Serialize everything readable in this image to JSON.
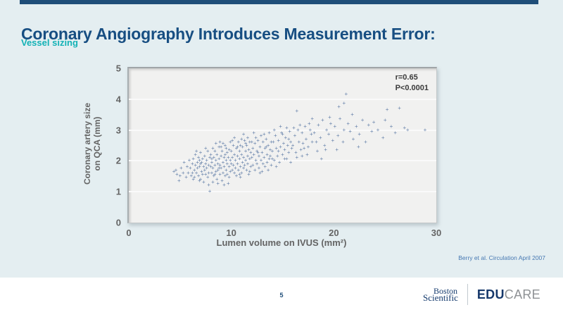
{
  "slide": {
    "title": "Coronary Angiography Introduces Measurement Error:",
    "subtitle": "Vessel sizing"
  },
  "chart_data": {
    "type": "scatter",
    "xlabel": "Lumen volume on IVUS (mm²)",
    "ylabel_line1": "Coronary artery size",
    "ylabel_line2": "on QCA (mm)",
    "xlim": [
      0,
      30
    ],
    "ylim": [
      0,
      5
    ],
    "xticks": [
      0,
      10,
      20,
      30
    ],
    "yticks": [
      0,
      1,
      2,
      3,
      4,
      5
    ],
    "gridlines_y": [
      1,
      2,
      3,
      4
    ],
    "grid": "horizontal",
    "legend": "none",
    "annotation": {
      "line1": "r=0.65",
      "line2": "P<0.0001"
    },
    "marker": "plus",
    "marker_color": "#4d6e9e",
    "points": [
      [
        4.4,
        1.65
      ],
      [
        4.7,
        1.55
      ],
      [
        4.9,
        1.35
      ],
      [
        5.1,
        1.75
      ],
      [
        5.3,
        1.6
      ],
      [
        5.4,
        1.95
      ],
      [
        5.6,
        1.45
      ],
      [
        5.7,
        1.8
      ],
      [
        5.8,
        1.6
      ],
      [
        5.9,
        2.0
      ],
      [
        5.0,
        1.5
      ],
      [
        4.6,
        1.7
      ],
      [
        6.0,
        1.75
      ],
      [
        6.1,
        1.5
      ],
      [
        6.2,
        1.9
      ],
      [
        6.2,
        1.6
      ],
      [
        6.3,
        2.05
      ],
      [
        6.4,
        1.7
      ],
      [
        6.4,
        1.45
      ],
      [
        6.5,
        1.85
      ],
      [
        6.5,
        2.2
      ],
      [
        6.6,
        1.6
      ],
      [
        6.7,
        1.95
      ],
      [
        6.7,
        1.75
      ],
      [
        6.8,
        1.5
      ],
      [
        6.8,
        2.1
      ],
      [
        6.9,
        1.8
      ],
      [
        6.9,
        1.35
      ],
      [
        7.0,
        1.9
      ],
      [
        7.0,
        2.25
      ],
      [
        7.1,
        1.65
      ],
      [
        7.1,
        1.95
      ],
      [
        7.2,
        1.55
      ],
      [
        7.2,
        2.05
      ],
      [
        7.3,
        1.8
      ],
      [
        7.3,
        1.3
      ],
      [
        7.4,
        2.15
      ],
      [
        7.4,
        1.7
      ],
      [
        7.5,
        1.9
      ],
      [
        7.5,
        1.55
      ],
      [
        7.6,
        2.0
      ],
      [
        7.6,
        1.75
      ],
      [
        7.7,
        1.45
      ],
      [
        7.7,
        2.3
      ],
      [
        7.8,
        1.85
      ],
      [
        7.8,
        1.6
      ],
      [
        7.9,
        2.1
      ],
      [
        7.9,
        1.0
      ],
      [
        6.3,
        1.4
      ],
      [
        6.6,
        2.3
      ],
      [
        7.0,
        1.4
      ],
      [
        7.5,
        2.4
      ],
      [
        7.8,
        1.2
      ],
      [
        6.9,
        2.0
      ],
      [
        8.0,
        1.8
      ],
      [
        8.0,
        2.2
      ],
      [
        8.1,
        1.6
      ],
      [
        8.1,
        1.95
      ],
      [
        8.2,
        2.4
      ],
      [
        8.2,
        1.75
      ],
      [
        8.3,
        1.5
      ],
      [
        8.3,
        2.1
      ],
      [
        8.4,
        1.85
      ],
      [
        8.4,
        2.3
      ],
      [
        8.5,
        1.65
      ],
      [
        8.5,
        2.0
      ],
      [
        8.6,
        1.4
      ],
      [
        8.6,
        2.2
      ],
      [
        8.7,
        1.9
      ],
      [
        8.7,
        1.7
      ],
      [
        8.8,
        2.45
      ],
      [
        8.8,
        2.05
      ],
      [
        8.9,
        1.55
      ],
      [
        8.9,
        1.85
      ],
      [
        9.0,
        2.15
      ],
      [
        9.0,
        1.75
      ],
      [
        9.1,
        1.35
      ],
      [
        9.1,
        2.3
      ],
      [
        9.2,
        1.95
      ],
      [
        9.2,
        1.6
      ],
      [
        9.3,
        2.1
      ],
      [
        9.3,
        1.8
      ],
      [
        9.4,
        2.5
      ],
      [
        9.4,
        1.5
      ],
      [
        9.5,
        2.0
      ],
      [
        9.5,
        1.7
      ],
      [
        9.6,
        2.25
      ],
      [
        9.6,
        1.9
      ],
      [
        9.7,
        1.25
      ],
      [
        9.7,
        2.1
      ],
      [
        9.8,
        1.8
      ],
      [
        9.8,
        2.35
      ],
      [
        9.9,
        1.65
      ],
      [
        9.9,
        2.0
      ],
      [
        8.2,
        1.3
      ],
      [
        8.9,
        2.6
      ],
      [
        9.3,
        1.2
      ],
      [
        9.8,
        1.45
      ],
      [
        8.5,
        2.55
      ],
      [
        9.0,
        2.45
      ],
      [
        9.6,
        1.55
      ],
      [
        8.7,
        1.25
      ],
      [
        9.2,
        2.55
      ],
      [
        8.4,
        1.55
      ],
      [
        9.9,
        2.6
      ],
      [
        8.1,
        2.05
      ],
      [
        9.5,
        2.4
      ],
      [
        8.8,
        1.75
      ],
      [
        9.4,
        2.2
      ],
      [
        10.0,
        1.9
      ],
      [
        10.0,
        2.3
      ],
      [
        10.1,
        1.7
      ],
      [
        10.1,
        2.1
      ],
      [
        10.2,
        2.5
      ],
      [
        10.2,
        1.85
      ],
      [
        10.3,
        1.6
      ],
      [
        10.3,
        2.2
      ],
      [
        10.4,
        2.0
      ],
      [
        10.4,
        1.75
      ],
      [
        10.5,
        2.4
      ],
      [
        10.5,
        1.5
      ],
      [
        10.6,
        2.15
      ],
      [
        10.6,
        1.9
      ],
      [
        10.7,
        2.6
      ],
      [
        10.7,
        1.7
      ],
      [
        10.8,
        2.05
      ],
      [
        10.8,
        2.3
      ],
      [
        10.9,
        1.8
      ],
      [
        10.9,
        2.5
      ],
      [
        11.0,
        1.6
      ],
      [
        11.0,
        2.2
      ],
      [
        11.1,
        1.95
      ],
      [
        11.1,
        2.45
      ],
      [
        11.2,
        1.75
      ],
      [
        11.2,
        2.1
      ],
      [
        11.3,
        2.65
      ],
      [
        11.3,
        1.85
      ],
      [
        11.4,
        2.3
      ],
      [
        11.4,
        2.0
      ],
      [
        11.5,
        1.7
      ],
      [
        11.5,
        2.5
      ],
      [
        11.6,
        2.15
      ],
      [
        11.6,
        1.9
      ],
      [
        11.7,
        2.35
      ],
      [
        11.7,
        1.55
      ],
      [
        11.8,
        2.6
      ],
      [
        11.8,
        2.05
      ],
      [
        11.9,
        1.8
      ],
      [
        11.9,
        2.25
      ],
      [
        10.3,
        2.75
      ],
      [
        11.6,
        2.75
      ],
      [
        10.9,
        1.45
      ],
      [
        11.2,
        2.85
      ],
      [
        10.6,
        2.45
      ],
      [
        11.8,
        1.65
      ],
      [
        10.1,
        2.65
      ],
      [
        11.4,
        2.55
      ],
      [
        10.8,
        1.55
      ],
      [
        11.0,
        2.7
      ],
      [
        12.0,
        2.1
      ],
      [
        12.1,
        1.85
      ],
      [
        12.1,
        2.4
      ],
      [
        12.2,
        2.2
      ],
      [
        12.3,
        1.7
      ],
      [
        12.3,
        2.55
      ],
      [
        12.4,
        2.0
      ],
      [
        12.5,
        2.3
      ],
      [
        12.5,
        1.9
      ],
      [
        12.6,
        2.65
      ],
      [
        12.7,
        2.15
      ],
      [
        12.7,
        1.75
      ],
      [
        12.8,
        2.45
      ],
      [
        12.9,
        2.0
      ],
      [
        12.9,
        2.8
      ],
      [
        13.0,
        2.25
      ],
      [
        13.1,
        1.9
      ],
      [
        13.1,
        2.6
      ],
      [
        13.2,
        2.1
      ],
      [
        13.3,
        2.4
      ],
      [
        13.3,
        1.8
      ],
      [
        13.4,
        2.7
      ],
      [
        13.5,
        2.2
      ],
      [
        13.5,
        1.95
      ],
      [
        13.6,
        2.5
      ],
      [
        13.7,
        2.05
      ],
      [
        13.7,
        2.9
      ],
      [
        13.8,
        2.35
      ],
      [
        13.9,
        2.6
      ],
      [
        13.9,
        1.85
      ],
      [
        12.4,
        2.75
      ],
      [
        13.2,
        2.85
      ],
      [
        12.8,
        1.6
      ],
      [
        13.6,
        1.7
      ],
      [
        12.2,
        2.9
      ],
      [
        13.0,
        1.65
      ],
      [
        13.8,
        2.15
      ],
      [
        12.6,
        2.25
      ],
      [
        13.4,
        2.45
      ],
      [
        12.0,
        2.6
      ],
      [
        14.0,
        2.3
      ],
      [
        14.1,
        2.6
      ],
      [
        14.2,
        2.0
      ],
      [
        14.3,
        2.8
      ],
      [
        14.4,
        2.4
      ],
      [
        14.5,
        2.15
      ],
      [
        14.6,
        2.65
      ],
      [
        14.7,
        1.95
      ],
      [
        14.8,
        2.45
      ],
      [
        14.9,
        2.9
      ],
      [
        15.0,
        2.2
      ],
      [
        15.1,
        2.55
      ],
      [
        15.2,
        2.35
      ],
      [
        15.3,
        2.75
      ],
      [
        15.4,
        2.05
      ],
      [
        15.5,
        2.5
      ],
      [
        15.6,
        2.25
      ],
      [
        15.7,
        2.95
      ],
      [
        15.8,
        2.6
      ],
      [
        15.9,
        2.4
      ],
      [
        14.2,
        3.0
      ],
      [
        15.4,
        3.05
      ],
      [
        14.6,
        2.3
      ],
      [
        15.8,
        1.95
      ],
      [
        14.4,
        1.8
      ],
      [
        15.2,
        2.05
      ],
      [
        14.8,
        3.1
      ],
      [
        15.6,
        2.7
      ],
      [
        14.0,
        2.05
      ],
      [
        15.0,
        2.85
      ],
      [
        16.0,
        2.5
      ],
      [
        16.2,
        2.8
      ],
      [
        16.3,
        2.25
      ],
      [
        16.5,
        3.0
      ],
      [
        16.6,
        2.6
      ],
      [
        16.8,
        2.35
      ],
      [
        16.9,
        2.9
      ],
      [
        17.0,
        2.55
      ],
      [
        17.2,
        3.1
      ],
      [
        17.3,
        2.7
      ],
      [
        17.5,
        2.45
      ],
      [
        17.6,
        3.2
      ],
      [
        17.8,
        2.85
      ],
      [
        17.9,
        2.6
      ],
      [
        16.4,
        2.1
      ],
      [
        17.4,
        2.2
      ],
      [
        16.7,
        3.15
      ],
      [
        17.1,
        2.4
      ],
      [
        16.1,
        3.05
      ],
      [
        17.7,
        3.0
      ],
      [
        16.9,
        2.15
      ],
      [
        17.9,
        3.35
      ],
      [
        18.1,
        2.9
      ],
      [
        18.3,
        2.6
      ],
      [
        18.5,
        3.15
      ],
      [
        18.7,
        2.75
      ],
      [
        18.9,
        3.3
      ],
      [
        19.1,
        2.5
      ],
      [
        19.3,
        3.0
      ],
      [
        19.5,
        2.85
      ],
      [
        19.7,
        3.2
      ],
      [
        19.9,
        2.65
      ],
      [
        18.4,
        2.3
      ],
      [
        19.6,
        3.4
      ],
      [
        18.8,
        2.05
      ],
      [
        19.2,
        2.35
      ],
      [
        20.1,
        3.1
      ],
      [
        20.4,
        2.8
      ],
      [
        20.6,
        3.35
      ],
      [
        20.9,
        2.6
      ],
      [
        21.2,
        4.15
      ],
      [
        21.4,
        3.2
      ],
      [
        21.6,
        2.95
      ],
      [
        21.8,
        3.5
      ],
      [
        20.3,
        2.35
      ],
      [
        21.0,
        3.0
      ],
      [
        21.9,
        2.7
      ],
      [
        22.2,
        3.1
      ],
      [
        22.5,
        2.85
      ],
      [
        22.8,
        3.3
      ],
      [
        23.1,
        2.6
      ],
      [
        23.4,
        3.15
      ],
      [
        23.7,
        2.95
      ],
      [
        22.4,
        2.45
      ],
      [
        23.9,
        3.25
      ],
      [
        24.3,
        3.0
      ],
      [
        24.8,
        2.75
      ],
      [
        25.2,
        3.65
      ],
      [
        25.6,
        3.1
      ],
      [
        26.0,
        2.9
      ],
      [
        26.4,
        3.7
      ],
      [
        26.9,
        3.05
      ],
      [
        25.0,
        3.3
      ],
      [
        27.2,
        3.0
      ],
      [
        16.4,
        3.6
      ],
      [
        21.0,
        3.85
      ],
      [
        20.5,
        3.75
      ],
      [
        28.9,
        3.0
      ]
    ]
  },
  "footer": {
    "citation": "Berry et al. Circulation April 2007",
    "page_number": "5",
    "logo": {
      "brand_line1": "Boston",
      "brand_line2": "Scientific",
      "educare_bold": "EDU",
      "educare_light": "CARE"
    }
  },
  "colors": {
    "slide_bg": "#e4eef1",
    "title": "#174e82",
    "subtitle_teal": "#13b2b6",
    "accent_bar": "#1f4e79",
    "axis_text": "#646464",
    "annotation_text": "#3a3a3a",
    "citation_blue": "#4678b2",
    "marker_blue": "#4d6e9e",
    "plot_bg": "#f1f1f0",
    "gridline": "#fafafa",
    "educare_navy": "#16386b",
    "educare_gray": "#8e9194"
  }
}
